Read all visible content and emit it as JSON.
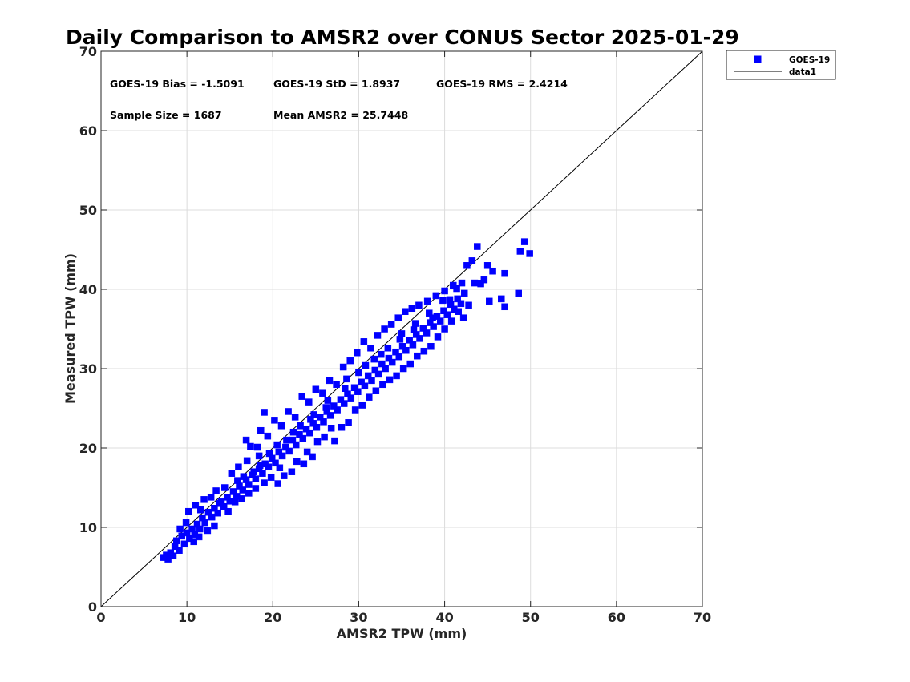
{
  "chart_data": {
    "type": "scatter",
    "title": "Daily Comparison to AMSR2 over CONUS Sector 2025-01-29",
    "xlabel": "AMSR2 TPW (mm)",
    "ylabel": "Measured TPW (mm)",
    "xlim": [
      0,
      70
    ],
    "ylim": [
      0,
      70
    ],
    "xticks": [
      "0",
      "10",
      "20",
      "30",
      "40",
      "50",
      "60",
      "70"
    ],
    "yticks": [
      "0",
      "10",
      "20",
      "30",
      "40",
      "50",
      "60",
      "70"
    ],
    "grid": true,
    "legend_position": "outside top-right",
    "annotations": {
      "bias": "GOES-19 Bias = -1.5091",
      "std": "GOES-19 StD = 1.8937",
      "rms": "GOES-19 RMS = 2.4214",
      "sample_size": "Sample Size = 1687",
      "mean": "Mean AMSR2 = 25.7448"
    },
    "series": [
      {
        "name": "GOES-19",
        "marker": "square",
        "color": "#0000ff",
        "points": [
          [
            7.3,
            6.2
          ],
          [
            7.6,
            6.5
          ],
          [
            7.8,
            6.0
          ],
          [
            8.1,
            6.8
          ],
          [
            8.4,
            6.4
          ],
          [
            8.6,
            7.6
          ],
          [
            9.1,
            7.1
          ],
          [
            9.4,
            8.9
          ],
          [
            9.7,
            7.9
          ],
          [
            10.0,
            9.3
          ],
          [
            10.3,
            8.6
          ],
          [
            10.6,
            9.8
          ],
          [
            10.9,
            9.1
          ],
          [
            11.2,
            10.4
          ],
          [
            11.5,
            9.8
          ],
          [
            11.8,
            11.2
          ],
          [
            12.1,
            10.6
          ],
          [
            12.5,
            11.9
          ],
          [
            12.9,
            11.3
          ],
          [
            13.2,
            12.4
          ],
          [
            13.6,
            11.8
          ],
          [
            14.0,
            13.2
          ],
          [
            14.3,
            12.6
          ],
          [
            14.7,
            13.8
          ],
          [
            15.0,
            13.3
          ],
          [
            15.4,
            14.5
          ],
          [
            15.8,
            13.9
          ],
          [
            16.1,
            15.2
          ],
          [
            16.5,
            14.7
          ],
          [
            16.9,
            16.0
          ],
          [
            17.2,
            15.4
          ],
          [
            17.6,
            16.6
          ],
          [
            18.0,
            16.1
          ],
          [
            18.4,
            17.4
          ],
          [
            18.8,
            16.8
          ],
          [
            19.1,
            18.0
          ],
          [
            19.5,
            17.6
          ],
          [
            19.9,
            18.7
          ],
          [
            20.3,
            18.1
          ],
          [
            20.7,
            19.5
          ],
          [
            21.1,
            19.0
          ],
          [
            21.5,
            20.1
          ],
          [
            21.9,
            19.6
          ],
          [
            22.3,
            21.0
          ],
          [
            22.7,
            20.4
          ],
          [
            23.1,
            21.7
          ],
          [
            23.5,
            21.2
          ],
          [
            23.9,
            22.4
          ],
          [
            24.3,
            21.9
          ],
          [
            24.7,
            23.1
          ],
          [
            25.1,
            22.6
          ],
          [
            25.5,
            23.9
          ],
          [
            25.9,
            23.3
          ],
          [
            26.3,
            24.6
          ],
          [
            26.7,
            24.1
          ],
          [
            27.1,
            25.3
          ],
          [
            27.5,
            24.8
          ],
          [
            27.9,
            26.1
          ],
          [
            28.3,
            25.6
          ],
          [
            28.7,
            26.8
          ],
          [
            29.1,
            26.3
          ],
          [
            29.5,
            27.6
          ],
          [
            29.9,
            27.1
          ],
          [
            30.3,
            28.3
          ],
          [
            30.7,
            27.8
          ],
          [
            31.1,
            29.1
          ],
          [
            31.5,
            28.5
          ],
          [
            31.9,
            29.8
          ],
          [
            32.3,
            29.3
          ],
          [
            32.7,
            30.6
          ],
          [
            33.1,
            30.0
          ],
          [
            33.5,
            31.3
          ],
          [
            33.9,
            30.8
          ],
          [
            34.3,
            32.1
          ],
          [
            34.7,
            31.5
          ],
          [
            35.1,
            32.8
          ],
          [
            35.5,
            32.3
          ],
          [
            35.9,
            33.6
          ],
          [
            36.3,
            33.0
          ],
          [
            36.7,
            34.3
          ],
          [
            37.1,
            33.8
          ],
          [
            37.5,
            35.1
          ],
          [
            37.9,
            34.5
          ],
          [
            38.3,
            35.8
          ],
          [
            38.7,
            35.3
          ],
          [
            39.1,
            36.6
          ],
          [
            39.5,
            36.0
          ],
          [
            39.9,
            37.3
          ],
          [
            40.3,
            36.8
          ],
          [
            40.7,
            38.1
          ],
          [
            41.1,
            37.5
          ],
          [
            41.5,
            38.8
          ],
          [
            41.9,
            38.2
          ],
          [
            42.3,
            39.5
          ],
          [
            42.8,
            38.0
          ],
          [
            43.5,
            40.8
          ],
          [
            10.2,
            12.0
          ],
          [
            11.0,
            12.8
          ],
          [
            12.0,
            13.5
          ],
          [
            13.4,
            14.6
          ],
          [
            15.2,
            16.8
          ],
          [
            16.0,
            17.6
          ],
          [
            17.0,
            18.4
          ],
          [
            18.2,
            20.1
          ],
          [
            18.6,
            22.2
          ],
          [
            19.4,
            21.5
          ],
          [
            20.2,
            23.5
          ],
          [
            21.0,
            22.8
          ],
          [
            21.8,
            24.6
          ],
          [
            22.6,
            23.9
          ],
          [
            23.4,
            26.5
          ],
          [
            24.2,
            25.8
          ],
          [
            25.0,
            27.4
          ],
          [
            25.8,
            26.9
          ],
          [
            26.6,
            28.5
          ],
          [
            27.4,
            28.0
          ],
          [
            28.2,
            30.2
          ],
          [
            29.0,
            31.0
          ],
          [
            29.8,
            32.0
          ],
          [
            30.6,
            33.4
          ],
          [
            31.4,
            32.6
          ],
          [
            32.2,
            34.2
          ],
          [
            33.0,
            35.0
          ],
          [
            33.8,
            35.6
          ],
          [
            34.6,
            36.4
          ],
          [
            35.4,
            37.2
          ],
          [
            36.2,
            37.6
          ],
          [
            37.0,
            38.0
          ],
          [
            38.0,
            38.5
          ],
          [
            39.0,
            39.2
          ],
          [
            40.0,
            39.8
          ],
          [
            41.0,
            40.5
          ],
          [
            42.0,
            40.8
          ],
          [
            42.6,
            43.0
          ],
          [
            43.2,
            43.6
          ],
          [
            43.8,
            45.4
          ],
          [
            45.0,
            43.0
          ],
          [
            45.6,
            42.3
          ],
          [
            44.6,
            41.2
          ],
          [
            44.2,
            40.7
          ],
          [
            45.2,
            38.5
          ],
          [
            46.6,
            38.8
          ],
          [
            47.0,
            37.8
          ],
          [
            47.0,
            42.0
          ],
          [
            48.6,
            39.5
          ],
          [
            48.8,
            44.8
          ],
          [
            49.3,
            46.0
          ],
          [
            49.9,
            44.5
          ],
          [
            16.9,
            21.0
          ],
          [
            17.4,
            20.2
          ],
          [
            18.4,
            19.0
          ],
          [
            19.0,
            24.5
          ],
          [
            20.6,
            15.5
          ],
          [
            21.3,
            16.5
          ],
          [
            22.2,
            17.0
          ],
          [
            22.8,
            18.3
          ],
          [
            23.6,
            18.0
          ],
          [
            24.0,
            19.5
          ],
          [
            24.6,
            18.9
          ],
          [
            25.2,
            20.8
          ],
          [
            26.0,
            21.4
          ],
          [
            26.8,
            22.5
          ],
          [
            27.2,
            20.9
          ],
          [
            28.0,
            22.6
          ],
          [
            28.8,
            23.2
          ],
          [
            29.6,
            24.8
          ],
          [
            30.4,
            25.4
          ],
          [
            31.2,
            26.4
          ],
          [
            32.0,
            27.2
          ],
          [
            32.8,
            28.0
          ],
          [
            33.6,
            28.6
          ],
          [
            34.4,
            29.1
          ],
          [
            35.2,
            30.0
          ],
          [
            36.0,
            30.6
          ],
          [
            36.8,
            31.6
          ],
          [
            37.6,
            32.2
          ],
          [
            38.4,
            32.8
          ],
          [
            39.2,
            34.0
          ],
          [
            40.0,
            35.0
          ],
          [
            40.8,
            36.0
          ],
          [
            41.6,
            37.2
          ],
          [
            42.2,
            36.4
          ],
          [
            14.8,
            12.0
          ],
          [
            15.6,
            13.2
          ],
          [
            16.4,
            13.6
          ],
          [
            17.2,
            14.3
          ],
          [
            18.0,
            14.9
          ],
          [
            19.0,
            15.6
          ],
          [
            19.8,
            16.3
          ],
          [
            20.8,
            17.5
          ],
          [
            13.2,
            10.2
          ],
          [
            12.4,
            9.6
          ],
          [
            11.4,
            8.8
          ],
          [
            10.8,
            8.2
          ],
          [
            12.8,
            13.8
          ],
          [
            14.4,
            15.0
          ],
          [
            15.9,
            15.9
          ],
          [
            17.8,
            17.0
          ],
          [
            19.6,
            19.3
          ],
          [
            21.6,
            21.0
          ],
          [
            23.2,
            22.8
          ],
          [
            24.8,
            24.2
          ],
          [
            26.4,
            26.0
          ],
          [
            28.4,
            27.5
          ],
          [
            30.0,
            29.5
          ],
          [
            31.8,
            31.2
          ],
          [
            33.4,
            32.6
          ],
          [
            35.0,
            34.4
          ],
          [
            36.6,
            35.7
          ],
          [
            38.2,
            37.0
          ],
          [
            39.8,
            38.6
          ],
          [
            41.4,
            40.1
          ],
          [
            9.2,
            9.8
          ],
          [
            8.8,
            8.3
          ],
          [
            9.9,
            10.6
          ],
          [
            11.6,
            12.2
          ],
          [
            13.8,
            13.0
          ],
          [
            16.6,
            16.4
          ],
          [
            18.5,
            17.8
          ],
          [
            20.5,
            20.4
          ],
          [
            22.4,
            22.0
          ],
          [
            24.4,
            23.6
          ],
          [
            26.2,
            25.1
          ],
          [
            28.6,
            28.7
          ],
          [
            30.8,
            30.4
          ],
          [
            32.6,
            31.8
          ],
          [
            34.8,
            33.7
          ],
          [
            36.4,
            34.9
          ],
          [
            38.6,
            36.4
          ],
          [
            40.6,
            38.7
          ]
        ]
      },
      {
        "name": "data1",
        "type": "line",
        "color": "#000000",
        "x": [
          0,
          70
        ],
        "y": [
          0,
          70
        ]
      }
    ]
  }
}
